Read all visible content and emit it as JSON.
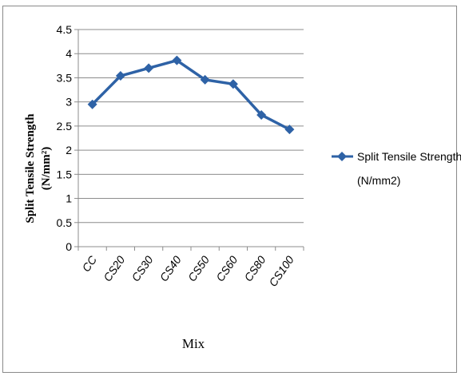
{
  "chart_data": {
    "type": "line",
    "categories": [
      "CC",
      "CS20",
      "CS30",
      "CS40",
      "CS50",
      "CS60",
      "CS80",
      "CS100"
    ],
    "series": [
      {
        "name": "Split Tensile Strength (N/mm2)",
        "values": [
          2.95,
          3.54,
          3.7,
          3.86,
          3.46,
          3.37,
          2.73,
          2.43
        ],
        "color": "#2E62A6",
        "marker": "diamond"
      }
    ],
    "title": "",
    "xlabel": "Mix",
    "ylabel_line1": "Split Tensile Strength",
    "ylabel_line2": "(N/mm²)",
    "ylim": [
      0,
      4.5
    ],
    "yticks": [
      "0",
      "0.5",
      "1",
      "1.5",
      "2",
      "2.5",
      "3",
      "3.5",
      "4",
      "4.5"
    ],
    "grid": "horizontal",
    "legend_position": "right",
    "legend_line1": "Split Tensile Strength",
    "legend_line2": "(N/mm2)"
  }
}
